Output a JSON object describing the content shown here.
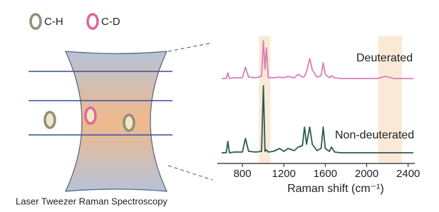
{
  "diagram": {
    "legend": [
      {
        "label": "C-H",
        "color": "#8c9178"
      },
      {
        "label": "C-D",
        "color": "#d9689e"
      }
    ],
    "caption": "Laser Tweezer Raman Spectroscopy"
  },
  "chart_data": {
    "type": "line",
    "xlabel": "Raman shift (cm⁻¹)",
    "x": [
      600,
      645,
      660,
      675,
      720,
      800,
      830,
      860,
      930,
      985,
      1003,
      1018,
      1032,
      1050,
      1100,
      1160,
      1200,
      1240,
      1300,
      1340,
      1380,
      1400,
      1420,
      1450,
      1475,
      1520,
      1560,
      1580,
      1600,
      1640,
      1660,
      1690,
      1750,
      1900,
      2100,
      2180,
      2260,
      2400,
      2450
    ],
    "series": [
      {
        "name": "Deuterated",
        "color": "#d77fb8",
        "values": [
          2,
          2,
          10,
          2,
          3,
          3,
          18,
          4,
          3,
          5,
          55,
          15,
          45,
          3,
          3,
          4,
          3,
          5,
          3,
          8,
          4,
          5,
          12,
          30,
          14,
          4,
          6,
          24,
          8,
          3,
          6,
          3,
          2,
          2,
          2,
          5,
          2,
          2,
          2
        ]
      },
      {
        "name": "Non-deuterated",
        "color": "#2f5a50",
        "values": [
          2,
          2,
          18,
          2,
          3,
          3,
          22,
          4,
          3,
          4,
          96,
          4,
          6,
          3,
          4,
          8,
          4,
          8,
          5,
          10,
          12,
          38,
          14,
          38,
          14,
          5,
          8,
          38,
          8,
          4,
          10,
          3,
          2,
          2,
          2,
          2,
          2,
          2,
          2
        ]
      }
    ],
    "xlim": [
      600,
      2450
    ],
    "xticks": [
      800,
      1200,
      1600,
      2000,
      2400
    ],
    "ylim": [
      0,
      100
    ],
    "highlights": [
      [
        960,
        1070
      ],
      [
        2110,
        2340
      ]
    ],
    "highlight_color": "#fbe9d8"
  }
}
